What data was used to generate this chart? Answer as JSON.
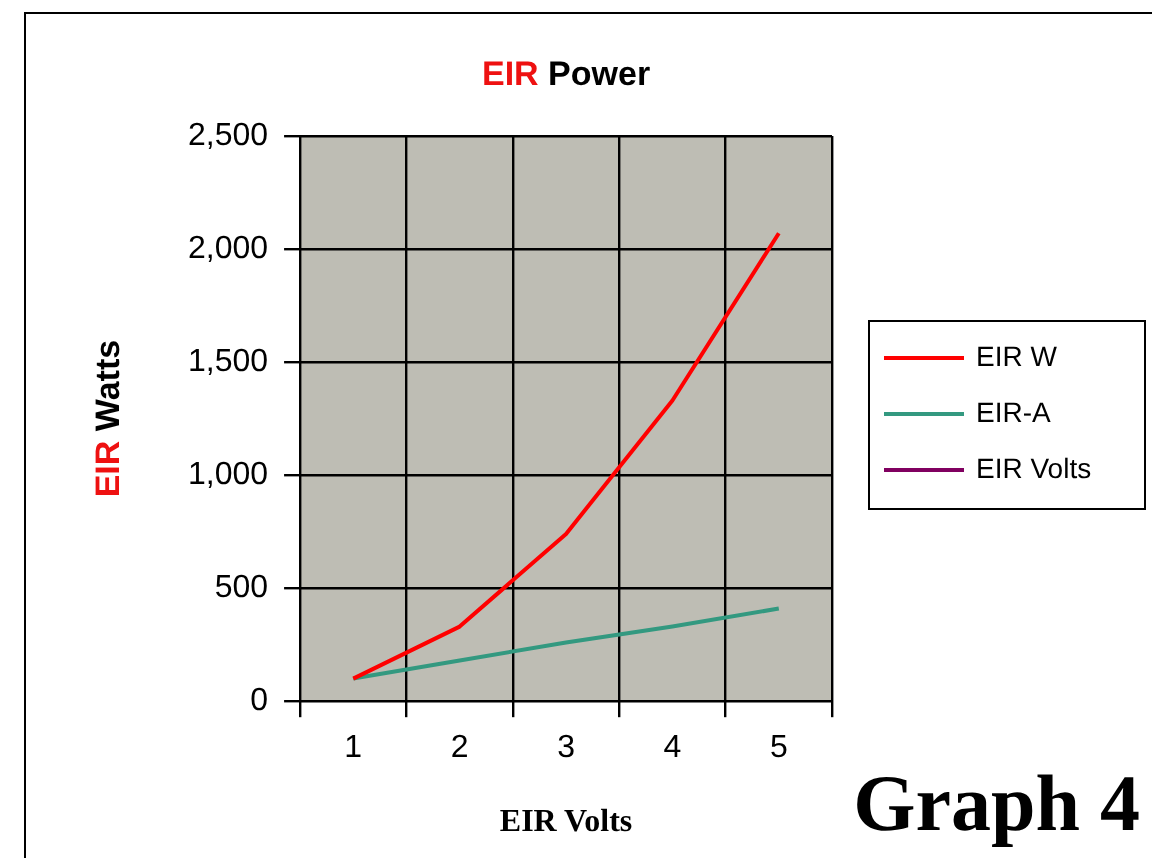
{
  "chart_data": {
    "type": "line",
    "title": "EIR Power",
    "xlabel": "EIR Volts",
    "ylabel": "EIR Watts",
    "categories": [
      "1",
      "2",
      "3",
      "4",
      "5"
    ],
    "series": [
      {
        "name": "EIR W",
        "color": "#ff0000",
        "values": [
          100,
          330,
          740,
          1330,
          2070
        ]
      },
      {
        "name": "EIR-A",
        "color": "#339980",
        "values": [
          100,
          180,
          260,
          330,
          410
        ]
      },
      {
        "name": "EIR Volts",
        "color": "#800060",
        "values": [
          null,
          null,
          null,
          null,
          null
        ]
      }
    ],
    "ylim": [
      0,
      2500
    ],
    "yticks": [
      {
        "value": 0,
        "label": "0"
      },
      {
        "value": 500,
        "label": "500"
      },
      {
        "value": 1000,
        "label": "1,000"
      },
      {
        "value": 1500,
        "label": "1,500"
      },
      {
        "value": 2000,
        "label": "2,000"
      },
      {
        "value": 2500,
        "label": "2,500"
      }
    ],
    "grid": true,
    "legend": "right",
    "marker": "none",
    "line_style": "solid",
    "annotations": [
      "Graph 4"
    ]
  }
}
